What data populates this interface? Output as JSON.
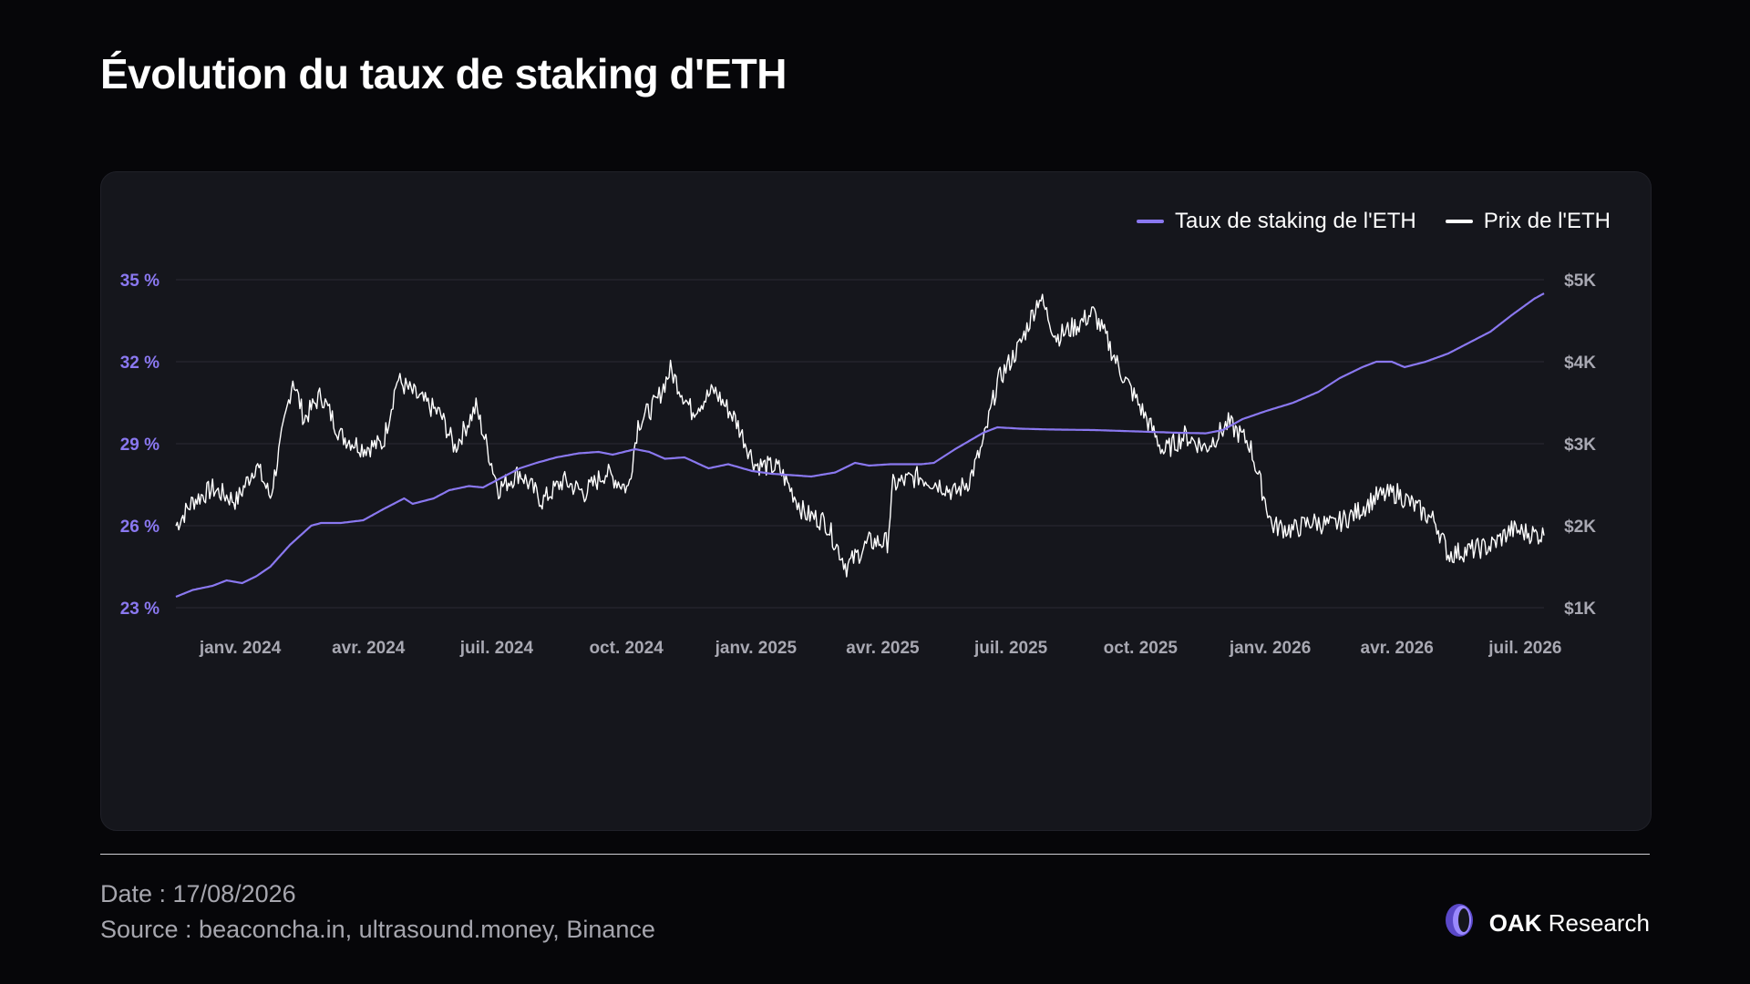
{
  "title": "Évolution du taux de staking d'ETH",
  "footer": {
    "date": "Date : 17/08/2026",
    "source": "Source : beaconcha.in, ultrasound.money, Binance"
  },
  "brand": {
    "name": "OAK",
    "suffix": "Research",
    "icon": "oak-logo-icon"
  },
  "colors": {
    "background": "#060609",
    "panel": "#15161c",
    "staking": "#8a78f0",
    "price": "#ffffff",
    "grid": "#2a2b33",
    "left_axis": "#8a78f0",
    "right_axis": "#a8a8b2"
  },
  "chart_data": {
    "type": "line",
    "legend": [
      "Taux de staking de l'ETH",
      "Prix de l'ETH"
    ],
    "legend_position": "top-right",
    "grid": true,
    "x_ticks": [
      "janv. 2024",
      "avr. 2024",
      "juil. 2024",
      "oct. 2024",
      "janv. 2025",
      "avr. 2025",
      "juil. 2025",
      "oct. 2025",
      "janv. 2026",
      "avr. 2026",
      "juil. 2026"
    ],
    "x_tick_dates": [
      "2024-01-01",
      "2024-04-01",
      "2024-07-01",
      "2024-10-01",
      "2025-01-01",
      "2025-04-01",
      "2025-07-01",
      "2025-10-01",
      "2026-01-01",
      "2026-04-01",
      "2026-07-01"
    ],
    "xlim": [
      "2023-12-20",
      "2026-08-17"
    ],
    "y_left": {
      "ticks": [
        "35 %",
        "32 %",
        "29 %",
        "26 %",
        "23 %"
      ],
      "values": [
        35,
        32,
        29,
        26,
        23
      ],
      "lim": [
        23,
        35
      ]
    },
    "y_right": {
      "ticks": [
        "$5K",
        "$4K",
        "$3K",
        "$2K",
        "$1K"
      ],
      "values": [
        5000,
        4000,
        3000,
        2000,
        1000
      ],
      "lim": [
        1000,
        5000
      ]
    },
    "series": [
      {
        "name": "Taux de staking de l'ETH",
        "axis": "left",
        "color": "#8a78f0",
        "points": [
          [
            "2023-12-20",
            23.4
          ],
          [
            "2024-01-01",
            23.65
          ],
          [
            "2024-01-15",
            23.8
          ],
          [
            "2024-01-25",
            24.0
          ],
          [
            "2024-02-05",
            23.9
          ],
          [
            "2024-02-15",
            24.15
          ],
          [
            "2024-02-25",
            24.5
          ],
          [
            "2024-03-10",
            25.3
          ],
          [
            "2024-03-25",
            26.0
          ],
          [
            "2024-04-01",
            26.1
          ],
          [
            "2024-04-15",
            26.1
          ],
          [
            "2024-05-01",
            26.2
          ],
          [
            "2024-05-15",
            26.6
          ],
          [
            "2024-05-30",
            27.0
          ],
          [
            "2024-06-05",
            26.8
          ],
          [
            "2024-06-20",
            27.0
          ],
          [
            "2024-07-01",
            27.3
          ],
          [
            "2024-07-15",
            27.45
          ],
          [
            "2024-07-25",
            27.4
          ],
          [
            "2024-08-05",
            27.7
          ],
          [
            "2024-08-20",
            28.1
          ],
          [
            "2024-09-01",
            28.3
          ],
          [
            "2024-09-15",
            28.5
          ],
          [
            "2024-10-01",
            28.65
          ],
          [
            "2024-10-15",
            28.7
          ],
          [
            "2024-10-25",
            28.6
          ],
          [
            "2024-11-10",
            28.8
          ],
          [
            "2024-11-20",
            28.7
          ],
          [
            "2024-12-01",
            28.45
          ],
          [
            "2024-12-15",
            28.5
          ],
          [
            "2025-01-01",
            28.1
          ],
          [
            "2025-01-15",
            28.25
          ],
          [
            "2025-02-01",
            28.0
          ],
          [
            "2025-02-15",
            27.9
          ],
          [
            "2025-03-01",
            27.85
          ],
          [
            "2025-03-15",
            27.8
          ],
          [
            "2025-04-01",
            27.95
          ],
          [
            "2025-04-15",
            28.3
          ],
          [
            "2025-04-25",
            28.2
          ],
          [
            "2025-05-10",
            28.25
          ],
          [
            "2025-06-01",
            28.25
          ],
          [
            "2025-06-10",
            28.3
          ],
          [
            "2025-06-25",
            28.8
          ],
          [
            "2025-07-15",
            29.4
          ],
          [
            "2025-07-25",
            29.6
          ],
          [
            "2025-08-10",
            29.55
          ],
          [
            "2025-09-01",
            29.52
          ],
          [
            "2025-10-01",
            29.5
          ],
          [
            "2025-11-01",
            29.45
          ],
          [
            "2025-12-01",
            29.4
          ],
          [
            "2025-12-20",
            29.38
          ],
          [
            "2026-01-01",
            29.5
          ],
          [
            "2026-01-15",
            29.9
          ],
          [
            "2026-02-01",
            30.2
          ],
          [
            "2026-02-20",
            30.5
          ],
          [
            "2026-03-10",
            30.9
          ],
          [
            "2026-03-25",
            31.4
          ],
          [
            "2026-04-10",
            31.8
          ],
          [
            "2026-04-20",
            32.0
          ],
          [
            "2026-05-01",
            32.0
          ],
          [
            "2026-05-10",
            31.8
          ],
          [
            "2026-05-25",
            32.0
          ],
          [
            "2026-06-10",
            32.3
          ],
          [
            "2026-06-25",
            32.7
          ],
          [
            "2026-07-10",
            33.1
          ],
          [
            "2026-07-25",
            33.7
          ],
          [
            "2026-08-10",
            34.3
          ],
          [
            "2026-08-17",
            34.5
          ]
        ]
      },
      {
        "name": "Prix de l'ETH",
        "axis": "right",
        "color": "#ffffff",
        "points": [
          [
            "2023-12-20",
            2000
          ],
          [
            "2024-01-01",
            2300
          ],
          [
            "2024-01-15",
            2450
          ],
          [
            "2024-02-01",
            2300
          ],
          [
            "2024-02-15",
            2750
          ],
          [
            "2024-02-25",
            2350
          ],
          [
            "2024-03-05",
            3150
          ],
          [
            "2024-03-12",
            3800
          ],
          [
            "2024-03-20",
            3300
          ],
          [
            "2024-04-01",
            3600
          ],
          [
            "2024-04-15",
            3100
          ],
          [
            "2024-05-01",
            2950
          ],
          [
            "2024-05-15",
            3000
          ],
          [
            "2024-05-25",
            3780
          ],
          [
            "2024-06-10",
            3550
          ],
          [
            "2024-06-25",
            3350
          ],
          [
            "2024-07-05",
            2950
          ],
          [
            "2024-07-20",
            3450
          ],
          [
            "2024-08-05",
            2450
          ],
          [
            "2024-08-20",
            2650
          ],
          [
            "2024-09-05",
            2300
          ],
          [
            "2024-09-20",
            2550
          ],
          [
            "2024-10-05",
            2400
          ],
          [
            "2024-10-20",
            2650
          ],
          [
            "2024-11-05",
            2450
          ],
          [
            "2024-11-12",
            3250
          ],
          [
            "2024-11-25",
            3500
          ],
          [
            "2024-12-05",
            3900
          ],
          [
            "2024-12-20",
            3400
          ],
          [
            "2025-01-05",
            3650
          ],
          [
            "2025-01-20",
            3300
          ],
          [
            "2025-02-03",
            2750
          ],
          [
            "2025-02-20",
            2700
          ],
          [
            "2025-03-10",
            2150
          ],
          [
            "2025-03-25",
            2050
          ],
          [
            "2025-04-09",
            1500
          ],
          [
            "2025-04-25",
            1800
          ],
          [
            "2025-05-08",
            1800
          ],
          [
            "2025-05-12",
            2500
          ],
          [
            "2025-05-30",
            2600
          ],
          [
            "2025-06-15",
            2500
          ],
          [
            "2025-06-25",
            2400
          ],
          [
            "2025-07-05",
            2550
          ],
          [
            "2025-07-15",
            3000
          ],
          [
            "2025-07-25",
            3750
          ],
          [
            "2025-08-10",
            4200
          ],
          [
            "2025-08-24",
            4800
          ],
          [
            "2025-09-05",
            4300
          ],
          [
            "2025-09-20",
            4450
          ],
          [
            "2025-10-01",
            4600
          ],
          [
            "2025-10-10",
            4300
          ],
          [
            "2025-10-20",
            3900
          ],
          [
            "2025-11-05",
            3400
          ],
          [
            "2025-11-20",
            2900
          ],
          [
            "2025-12-05",
            3100
          ],
          [
            "2025-12-20",
            2950
          ],
          [
            "2026-01-05",
            3250
          ],
          [
            "2026-01-20",
            3000
          ],
          [
            "2026-02-05",
            2000
          ],
          [
            "2026-02-20",
            1950
          ],
          [
            "2026-03-05",
            2050
          ],
          [
            "2026-03-20",
            2000
          ],
          [
            "2026-04-05",
            2150
          ],
          [
            "2026-04-20",
            2350
          ],
          [
            "2026-05-05",
            2400
          ],
          [
            "2026-05-20",
            2200
          ],
          [
            "2026-06-01",
            2050
          ],
          [
            "2026-06-10",
            1650
          ],
          [
            "2026-06-25",
            1700
          ],
          [
            "2026-07-10",
            1750
          ],
          [
            "2026-07-25",
            1950
          ],
          [
            "2026-08-10",
            1900
          ],
          [
            "2026-08-17",
            1880
          ]
        ]
      }
    ]
  }
}
